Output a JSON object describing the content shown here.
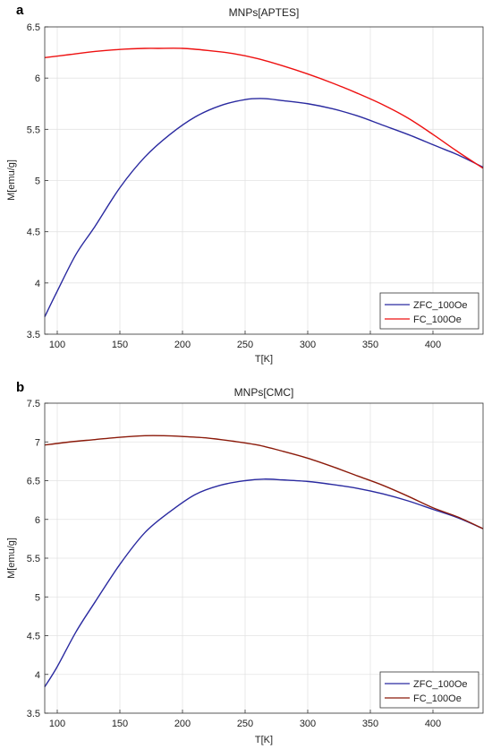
{
  "chart_data": [
    {
      "type": "line",
      "panel_label": "a",
      "title": "MNPs[APTES]",
      "xlabel": "T[K]",
      "ylabel": "M[emu/g]",
      "xlim": [
        90,
        440
      ],
      "ylim": [
        3.5,
        6.5
      ],
      "xticks": [
        100,
        150,
        200,
        250,
        300,
        350,
        400
      ],
      "yticks": [
        3.5,
        4,
        4.5,
        5,
        5.5,
        6,
        6.5
      ],
      "grid": true,
      "legend_position": "bottom-right",
      "series": [
        {
          "name": "ZFC_100Oe",
          "color": "#2a2aa0",
          "x": [
            90,
            100,
            115,
            130,
            150,
            170,
            190,
            210,
            230,
            250,
            265,
            280,
            300,
            320,
            340,
            360,
            380,
            400,
            410,
            420,
            440
          ],
          "y": [
            3.67,
            3.92,
            4.28,
            4.55,
            4.93,
            5.23,
            5.45,
            5.62,
            5.73,
            5.79,
            5.8,
            5.78,
            5.75,
            5.7,
            5.63,
            5.54,
            5.45,
            5.35,
            5.3,
            5.25,
            5.13
          ]
        },
        {
          "name": "FC_100Oe",
          "color": "#ee1111",
          "x": [
            90,
            110,
            130,
            150,
            170,
            180,
            200,
            220,
            240,
            260,
            280,
            300,
            320,
            340,
            360,
            380,
            400,
            420,
            440
          ],
          "y": [
            6.2,
            6.23,
            6.26,
            6.28,
            6.29,
            6.29,
            6.29,
            6.27,
            6.24,
            6.19,
            6.12,
            6.04,
            5.95,
            5.85,
            5.74,
            5.61,
            5.45,
            5.28,
            5.12
          ]
        }
      ]
    },
    {
      "type": "line",
      "panel_label": "b",
      "title": "MNPs[CMC]",
      "xlabel": "T[K]",
      "ylabel": "M[emu/g]",
      "xlim": [
        90,
        440
      ],
      "ylim": [
        3.5,
        7.5
      ],
      "xticks": [
        100,
        150,
        200,
        250,
        300,
        350,
        400
      ],
      "yticks": [
        3.5,
        4,
        4.5,
        5,
        5.5,
        6,
        6.5,
        7,
        7.5
      ],
      "grid": true,
      "legend_position": "bottom-right",
      "series": [
        {
          "name": "ZFC_100Oe",
          "color": "#2a2aa0",
          "x": [
            90,
            100,
            115,
            130,
            150,
            170,
            190,
            210,
            230,
            250,
            265,
            280,
            300,
            320,
            340,
            360,
            380,
            400,
            420,
            440
          ],
          "y": [
            3.84,
            4.1,
            4.55,
            4.93,
            5.42,
            5.83,
            6.1,
            6.32,
            6.44,
            6.5,
            6.52,
            6.51,
            6.49,
            6.45,
            6.4,
            6.33,
            6.24,
            6.13,
            6.02,
            5.88
          ]
        },
        {
          "name": "FC_100Oe",
          "color": "#8b1a0a",
          "x": [
            90,
            110,
            130,
            150,
            170,
            185,
            200,
            220,
            240,
            260,
            280,
            300,
            320,
            340,
            360,
            380,
            400,
            420,
            440
          ],
          "y": [
            6.96,
            7.0,
            7.03,
            7.06,
            7.08,
            7.08,
            7.07,
            7.05,
            7.01,
            6.96,
            6.88,
            6.79,
            6.68,
            6.56,
            6.44,
            6.3,
            6.15,
            6.03,
            5.88
          ]
        }
      ]
    }
  ]
}
